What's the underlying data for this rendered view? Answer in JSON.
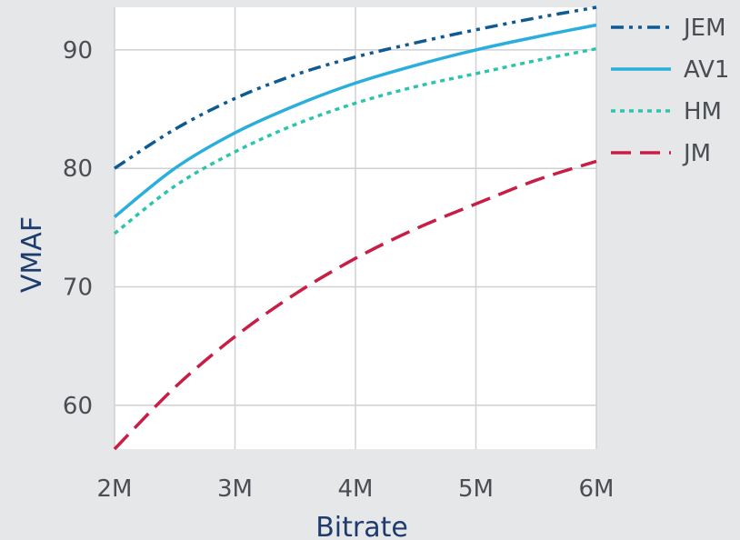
{
  "chart_data": {
    "type": "line",
    "xlabel": "Bitrate",
    "ylabel": "VMAF",
    "x_unit": "Mbps",
    "xlim": [
      2,
      6
    ],
    "ylim": [
      56.3,
      93.6
    ],
    "x_ticks": [
      {
        "value": 2,
        "label": "2M"
      },
      {
        "value": 3,
        "label": "3M"
      },
      {
        "value": 4,
        "label": "4M"
      },
      {
        "value": 5,
        "label": "5M"
      },
      {
        "value": 6,
        "label": "6M"
      }
    ],
    "y_ticks": [
      {
        "value": 60,
        "label": "60"
      },
      {
        "value": 70,
        "label": "70"
      },
      {
        "value": 80,
        "label": "80"
      },
      {
        "value": 90,
        "label": "90"
      }
    ],
    "grid": true,
    "legend_position": "right",
    "x": [
      2,
      2.5,
      3,
      3.5,
      4,
      4.5,
      5,
      5.5,
      6
    ],
    "series": [
      {
        "name": "JEM",
        "color": "#0e5a93",
        "dash": "dash-dot-dot",
        "values": [
          80.0,
          83.3,
          85.9,
          87.9,
          89.4,
          90.6,
          91.7,
          92.7,
          93.6
        ]
      },
      {
        "name": "AV1",
        "color": "#2aaedc",
        "dash": "solid",
        "values": [
          75.9,
          80.0,
          83.0,
          85.3,
          87.2,
          88.7,
          90.0,
          91.1,
          92.1
        ]
      },
      {
        "name": "HM",
        "color": "#2cc4ae",
        "dash": "dotted",
        "values": [
          74.5,
          78.5,
          81.4,
          83.7,
          85.5,
          86.9,
          88.0,
          89.1,
          90.1
        ]
      },
      {
        "name": "JM",
        "color": "#c81e45",
        "dash": "long-dash",
        "values": [
          56.3,
          61.5,
          65.8,
          69.4,
          72.4,
          74.9,
          77.0,
          79.0,
          80.6
        ]
      }
    ]
  }
}
